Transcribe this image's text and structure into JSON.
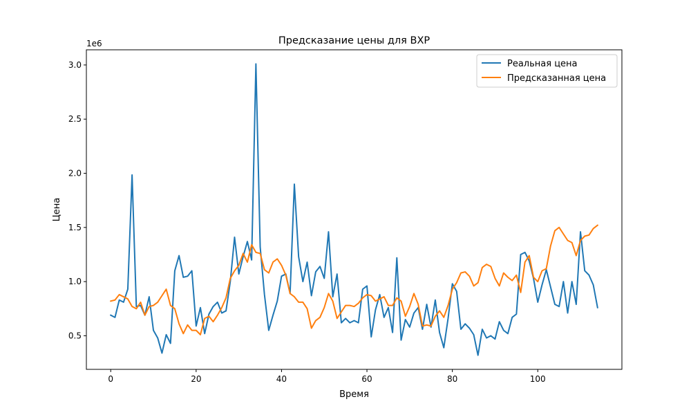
{
  "chart_data": {
    "type": "line",
    "title": "Предсказание цены для BXP",
    "xlabel": "Время",
    "ylabel": "Цена",
    "y_scale_label": "1e6",
    "xlim": [
      -5.7,
      119.7
    ],
    "ylim": [
      190000,
      3140000
    ],
    "x_ticks": [
      0,
      20,
      40,
      60,
      80,
      100
    ],
    "x_tick_labels": [
      "0",
      "20",
      "40",
      "60",
      "80",
      "100"
    ],
    "y_ticks": [
      500000,
      1000000,
      1500000,
      2000000,
      2500000,
      3000000
    ],
    "y_tick_labels": [
      "0.5",
      "1.0",
      "1.5",
      "2.0",
      "2.5",
      "3.0"
    ],
    "legend_position": "top-right",
    "grid": false,
    "series": [
      {
        "name": "Реальная цена",
        "color": "#1f77b4",
        "values": [
          690000,
          670000,
          830000,
          810000,
          930000,
          1985000,
          770000,
          780000,
          690000,
          860000,
          550000,
          480000,
          340000,
          510000,
          430000,
          1100000,
          1240000,
          1040000,
          1050000,
          1100000,
          590000,
          760000,
          520000,
          700000,
          770000,
          810000,
          710000,
          730000,
          1000000,
          1410000,
          1070000,
          1230000,
          1370000,
          1200000,
          3010000,
          1320000,
          880000,
          550000,
          690000,
          820000,
          1050000,
          1070000,
          890000,
          1900000,
          1230000,
          1000000,
          1180000,
          870000,
          1090000,
          1140000,
          1030000,
          1460000,
          860000,
          1070000,
          620000,
          660000,
          620000,
          640000,
          620000,
          930000,
          960000,
          490000,
          740000,
          880000,
          670000,
          760000,
          530000,
          1220000,
          460000,
          650000,
          580000,
          710000,
          760000,
          560000,
          790000,
          580000,
          830000,
          530000,
          390000,
          660000,
          980000,
          910000,
          560000,
          610000,
          570000,
          510000,
          320000,
          560000,
          480000,
          500000,
          470000,
          630000,
          550000,
          520000,
          670000,
          700000,
          1250000,
          1270000,
          1190000,
          1030000,
          810000,
          970000,
          1110000,
          950000,
          790000,
          770000,
          1000000,
          710000,
          1000000,
          790000,
          1460000,
          1100000,
          1060000,
          970000,
          760000
        ]
      },
      {
        "name": "Предсказанная цена",
        "color": "#ff7f0e",
        "values": [
          820000,
          830000,
          880000,
          860000,
          840000,
          770000,
          750000,
          810000,
          690000,
          770000,
          780000,
          810000,
          870000,
          930000,
          780000,
          750000,
          610000,
          520000,
          600000,
          550000,
          550000,
          510000,
          660000,
          680000,
          630000,
          690000,
          760000,
          850000,
          1030000,
          1100000,
          1150000,
          1260000,
          1180000,
          1340000,
          1270000,
          1260000,
          1110000,
          1080000,
          1180000,
          1210000,
          1150000,
          1060000,
          890000,
          860000,
          810000,
          810000,
          750000,
          570000,
          640000,
          670000,
          760000,
          890000,
          820000,
          660000,
          720000,
          780000,
          780000,
          770000,
          800000,
          850000,
          880000,
          870000,
          820000,
          840000,
          860000,
          780000,
          780000,
          850000,
          820000,
          680000,
          770000,
          890000,
          790000,
          590000,
          600000,
          590000,
          680000,
          730000,
          670000,
          780000,
          930000,
          990000,
          1080000,
          1090000,
          1050000,
          960000,
          990000,
          1130000,
          1160000,
          1140000,
          1030000,
          960000,
          1080000,
          1040000,
          1010000,
          1060000,
          900000,
          1180000,
          1240000,
          1040000,
          1000000,
          1100000,
          1120000,
          1330000,
          1470000,
          1500000,
          1440000,
          1380000,
          1360000,
          1240000,
          1380000,
          1420000,
          1430000,
          1490000,
          1520000
        ]
      }
    ]
  }
}
